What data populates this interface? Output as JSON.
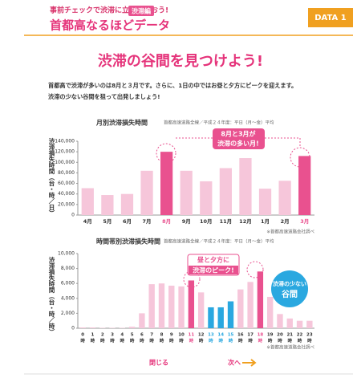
{
  "header": {
    "tagline": "事前チェックで渋滞に立ち向かおう!",
    "title": "首都高なるほどデータ",
    "badge": "渋滞編",
    "tab": "DATA 1"
  },
  "heading": "渋滞の谷間を見つけよう!",
  "intro": [
    "首都高で渋滞が多いのは8月と３月です。さらに、1日の中ではお昼と夕方にピークを迎えます。",
    "渋滞の少ない谷間を狙って出発しましょう!"
  ],
  "chart_data": [
    {
      "type": "bar",
      "title": "月別渋滞損失時間",
      "subtitle": "首都高速道路全線／平成２４年度：平日（月～金）平均",
      "ylabel": "渋滞損失時間（台・時／日）",
      "categories": [
        "4月",
        "5月",
        "6月",
        "7月",
        "8月",
        "9月",
        "10月",
        "11月",
        "12月",
        "1月",
        "2月",
        "3月"
      ],
      "values": [
        51000,
        38000,
        40000,
        84000,
        120000,
        84000,
        64000,
        89000,
        108000,
        50000,
        65000,
        112000
      ],
      "color": "#f6c6da",
      "colors": [
        "#f6c6da",
        "#f6c6da",
        "#f6c6da",
        "#f6c6da",
        "#e9518f",
        "#f6c6da",
        "#f6c6da",
        "#f6c6da",
        "#f6c6da",
        "#f6c6da",
        "#f6c6da",
        "#e9518f"
      ],
      "ylim": [
        0,
        140000
      ],
      "yticks": [
        0,
        {
          "value": 20000,
          "label": "20,000"
        },
        {
          "value": 40000,
          "label": "40,000"
        },
        {
          "value": 60000,
          "label": "60,000"
        },
        {
          "value": 80000,
          "label": "80,000"
        },
        {
          "value": 100000,
          "label": "100,000"
        },
        {
          "value": 120000,
          "label": "120,000"
        },
        {
          "value": 140000,
          "label": "140,000"
        }
      ],
      "callout": [
        "8月と3月が",
        "渋滞の多い月!"
      ],
      "source": "※首都高速道路会社調べ"
    },
    {
      "type": "bar",
      "title": "時間帯別渋滞損失時間",
      "subtitle": "首都高速道路全線／平成２４年度：平日（月～金）平均",
      "ylabel": "渋滞損失時間（台・時／時）",
      "categories": [
        "0",
        "1",
        "2",
        "3",
        "4",
        "5",
        "6",
        "7",
        "8",
        "9",
        "10",
        "11",
        "12",
        "13",
        "14",
        "15",
        "16",
        "17",
        "18",
        "19",
        "20",
        "21",
        "22",
        "23"
      ],
      "category_unit": "時",
      "values": [
        100,
        100,
        50,
        50,
        50,
        200,
        2000,
        5900,
        6000,
        5700,
        5600,
        6400,
        4800,
        2800,
        2800,
        3600,
        5200,
        6200,
        7600,
        4200,
        1900,
        1300,
        1000,
        1000
      ],
      "color": "#f6c6da",
      "colors": [
        "#f6c6da",
        "#f6c6da",
        "#f6c6da",
        "#f6c6da",
        "#f6c6da",
        "#f6c6da",
        "#f6c6da",
        "#f6c6da",
        "#f6c6da",
        "#f6c6da",
        "#f6c6da",
        "#e9518f",
        "#f6c6da",
        "#2aa8e0",
        "#2aa8e0",
        "#2aa8e0",
        "#f6c6da",
        "#f6c6da",
        "#e9518f",
        "#f6c6da",
        "#f6c6da",
        "#f6c6da",
        "#f6c6da",
        "#f6c6da"
      ],
      "ylim": [
        0,
        10000
      ],
      "yticks": [
        0,
        {
          "value": 2000,
          "label": "2,000"
        },
        {
          "value": 4000,
          "label": "4,000"
        },
        {
          "value": 6000,
          "label": "6,000"
        },
        {
          "value": 8000,
          "label": "8,000"
        },
        {
          "value": 10000,
          "label": "10,000"
        }
      ],
      "callout": [
        "昼と夕方に",
        "渋滞のピーク!"
      ],
      "callout2": [
        "渋滞の少ない",
        "谷間"
      ],
      "source": "※首都高速道路会社調べ"
    }
  ],
  "footer": {
    "close": "閉じる",
    "next": "次へ"
  }
}
